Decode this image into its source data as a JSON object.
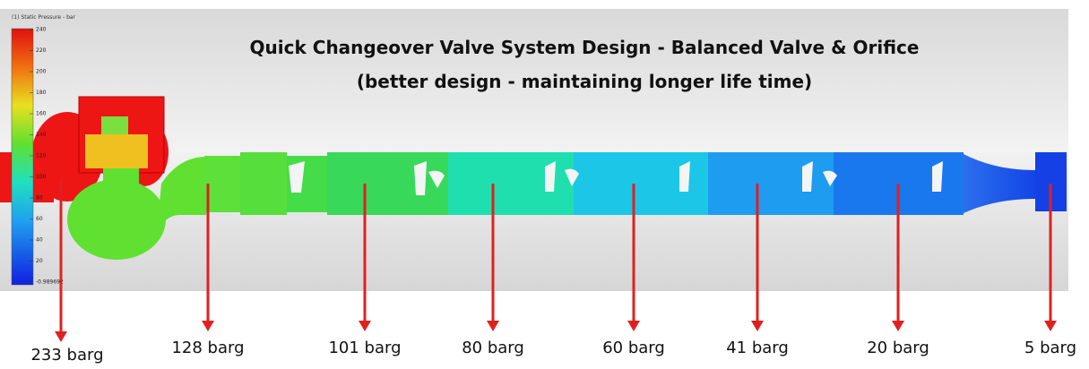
{
  "colorbar": {
    "title": "(1) Static Pressure - bar",
    "ticks": [
      "240",
      "220",
      "200",
      "180",
      "160",
      "140",
      "120",
      "100",
      "80",
      "60",
      "40",
      "20",
      "-0.989692"
    ]
  },
  "title": [
    "Quick Changeover Valve System Design - Balanced Valve & Orifice",
    "(better design - maintaining longer life time)"
  ],
  "probes": [
    "233 barg",
    "128 barg",
    "101 barg",
    "80 barg",
    "60 barg",
    "41 barg",
    "20 barg",
    "5 barg"
  ]
}
